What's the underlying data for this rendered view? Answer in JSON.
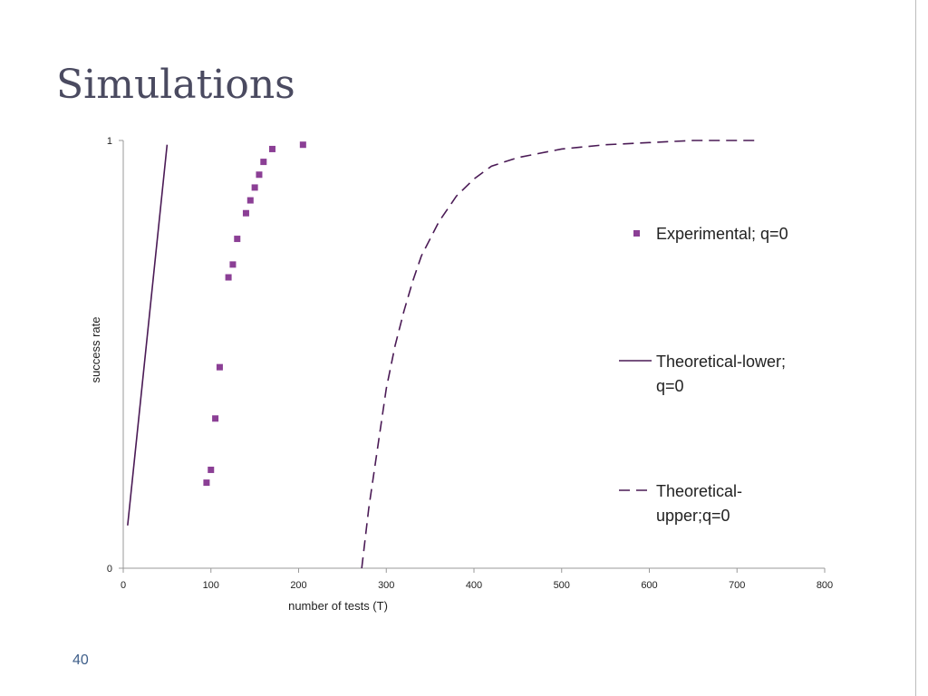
{
  "slide": {
    "title": "Simulations",
    "page_number": "40"
  },
  "colors": {
    "experimental": "#8b3f95",
    "lower": "#4a1a55",
    "upper": "#4a1a55",
    "axis": "#999999"
  },
  "chart_data": {
    "type": "scatter",
    "title": "",
    "xlabel": "number of tests (T)",
    "ylabel": "success rate",
    "xlim": [
      0,
      800
    ],
    "ylim": [
      0,
      1
    ],
    "x_ticks": [
      0,
      100,
      200,
      300,
      400,
      500,
      600,
      700,
      800
    ],
    "y_ticks": [
      0,
      1
    ],
    "grid": false,
    "legend_position": "right",
    "series": [
      {
        "name": "Experimental; q=0",
        "style": "markers",
        "points": [
          [
            95,
            0.2
          ],
          [
            100,
            0.23
          ],
          [
            105,
            0.35
          ],
          [
            110,
            0.47
          ],
          [
            120,
            0.68
          ],
          [
            125,
            0.71
          ],
          [
            130,
            0.77
          ],
          [
            140,
            0.83
          ],
          [
            145,
            0.86
          ],
          [
            150,
            0.89
          ],
          [
            155,
            0.92
          ],
          [
            160,
            0.95
          ],
          [
            170,
            0.98
          ],
          [
            205,
            0.99
          ]
        ]
      },
      {
        "name": "Theoretical-lower; q=0",
        "style": "solid",
        "points": [
          [
            5,
            0.1
          ],
          [
            50,
            0.99
          ]
        ]
      },
      {
        "name": "Theoretical-upper;q=0",
        "style": "dashed",
        "points": [
          [
            272,
            0.0
          ],
          [
            280,
            0.14
          ],
          [
            290,
            0.28
          ],
          [
            300,
            0.42
          ],
          [
            310,
            0.52
          ],
          [
            320,
            0.6
          ],
          [
            330,
            0.67
          ],
          [
            340,
            0.73
          ],
          [
            350,
            0.77
          ],
          [
            360,
            0.81
          ],
          [
            380,
            0.87
          ],
          [
            400,
            0.91
          ],
          [
            420,
            0.94
          ],
          [
            450,
            0.96
          ],
          [
            500,
            0.98
          ],
          [
            550,
            0.99
          ],
          [
            600,
            0.995
          ],
          [
            650,
            1.0
          ],
          [
            725,
            1.0
          ]
        ]
      }
    ]
  }
}
